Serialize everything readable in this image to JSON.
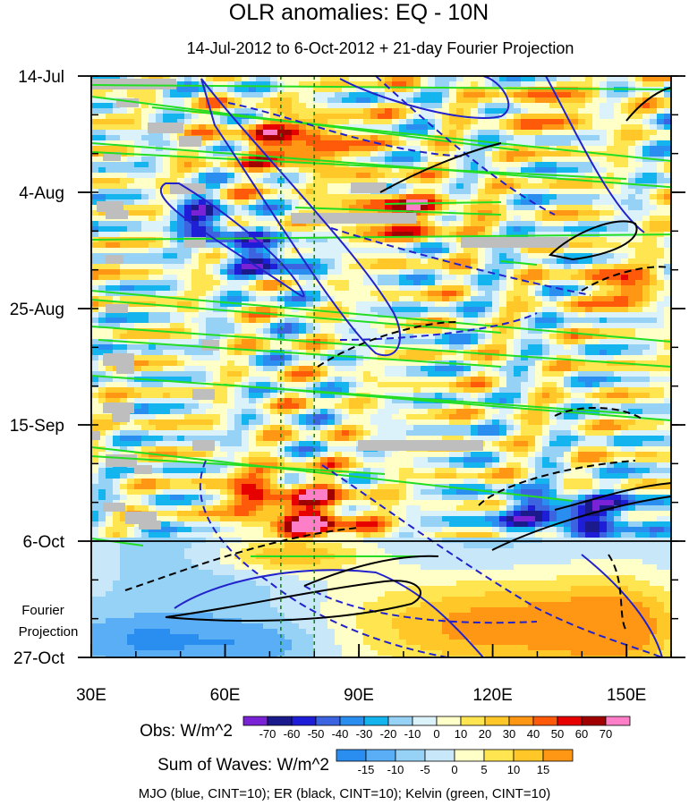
{
  "chart_data": {
    "type": "heatmap",
    "title": "OLR anomalies: EQ - 10N",
    "subtitle": "14-Jul-2012 to 6-Oct-2012 + 21-day Fourier Projection",
    "x_axis": {
      "range": [
        30,
        160
      ],
      "ticks": [
        {
          "value": 30,
          "label": "30E"
        },
        {
          "value": 60,
          "label": "60E"
        },
        {
          "value": 90,
          "label": "90E"
        },
        {
          "value": 120,
          "label": "120E"
        },
        {
          "value": 150,
          "label": "150E"
        }
      ],
      "minor_step": 10
    },
    "y_axis": {
      "range_days": [
        0,
        105
      ],
      "ticks": [
        {
          "day": 0,
          "label": "14-Jul"
        },
        {
          "day": 21,
          "label": "4-Aug"
        },
        {
          "day": 42,
          "label": "25-Aug"
        },
        {
          "day": 63,
          "label": "15-Sep"
        },
        {
          "day": 84,
          "label": "6-Oct"
        },
        {
          "day": 105,
          "label": "27-Oct"
        }
      ],
      "minor_step_days": 7,
      "observation_end_day": 84
    },
    "projection_label": [
      "Fourier",
      "Projection"
    ],
    "reference_lines_lon": [
      72.5,
      80
    ],
    "obs_colorbar": {
      "label": "Obs: W/m^2",
      "levels": [
        -70,
        -60,
        -50,
        -40,
        -30,
        -20,
        -10,
        0,
        10,
        20,
        30,
        40,
        50,
        60,
        70
      ],
      "colors": [
        "#7a22d6",
        "#1a1a8c",
        "#1e1ed8",
        "#3c64e0",
        "#2a8ef0",
        "#14b4ee",
        "#96d2f5",
        "#dcf2fa",
        "#ffffc8",
        "#ffe650",
        "#ffc828",
        "#ff9614",
        "#ff5a0a",
        "#e60000",
        "#a00000",
        "#ff7ec8"
      ]
    },
    "waves_colorbar": {
      "label": "Sum of Waves: W/m^2",
      "levels": [
        -15,
        -10,
        -5,
        0,
        5,
        10,
        15
      ],
      "colors": [
        "#2a8ef0",
        "#5aaef5",
        "#96d2f5",
        "#c8e8fa",
        "#ffffc8",
        "#ffe650",
        "#ffc828",
        "#ff9614"
      ]
    },
    "contour_legend": "MJO (blue, CINT=10); ER (black, CINT=10); Kelvin (green, CINT=10)",
    "series": [
      {
        "name": "MJO",
        "color": "#2222cc"
      },
      {
        "name": "ER",
        "color": "#000000"
      },
      {
        "name": "Kelvin",
        "color": "#22dd22"
      }
    ]
  }
}
